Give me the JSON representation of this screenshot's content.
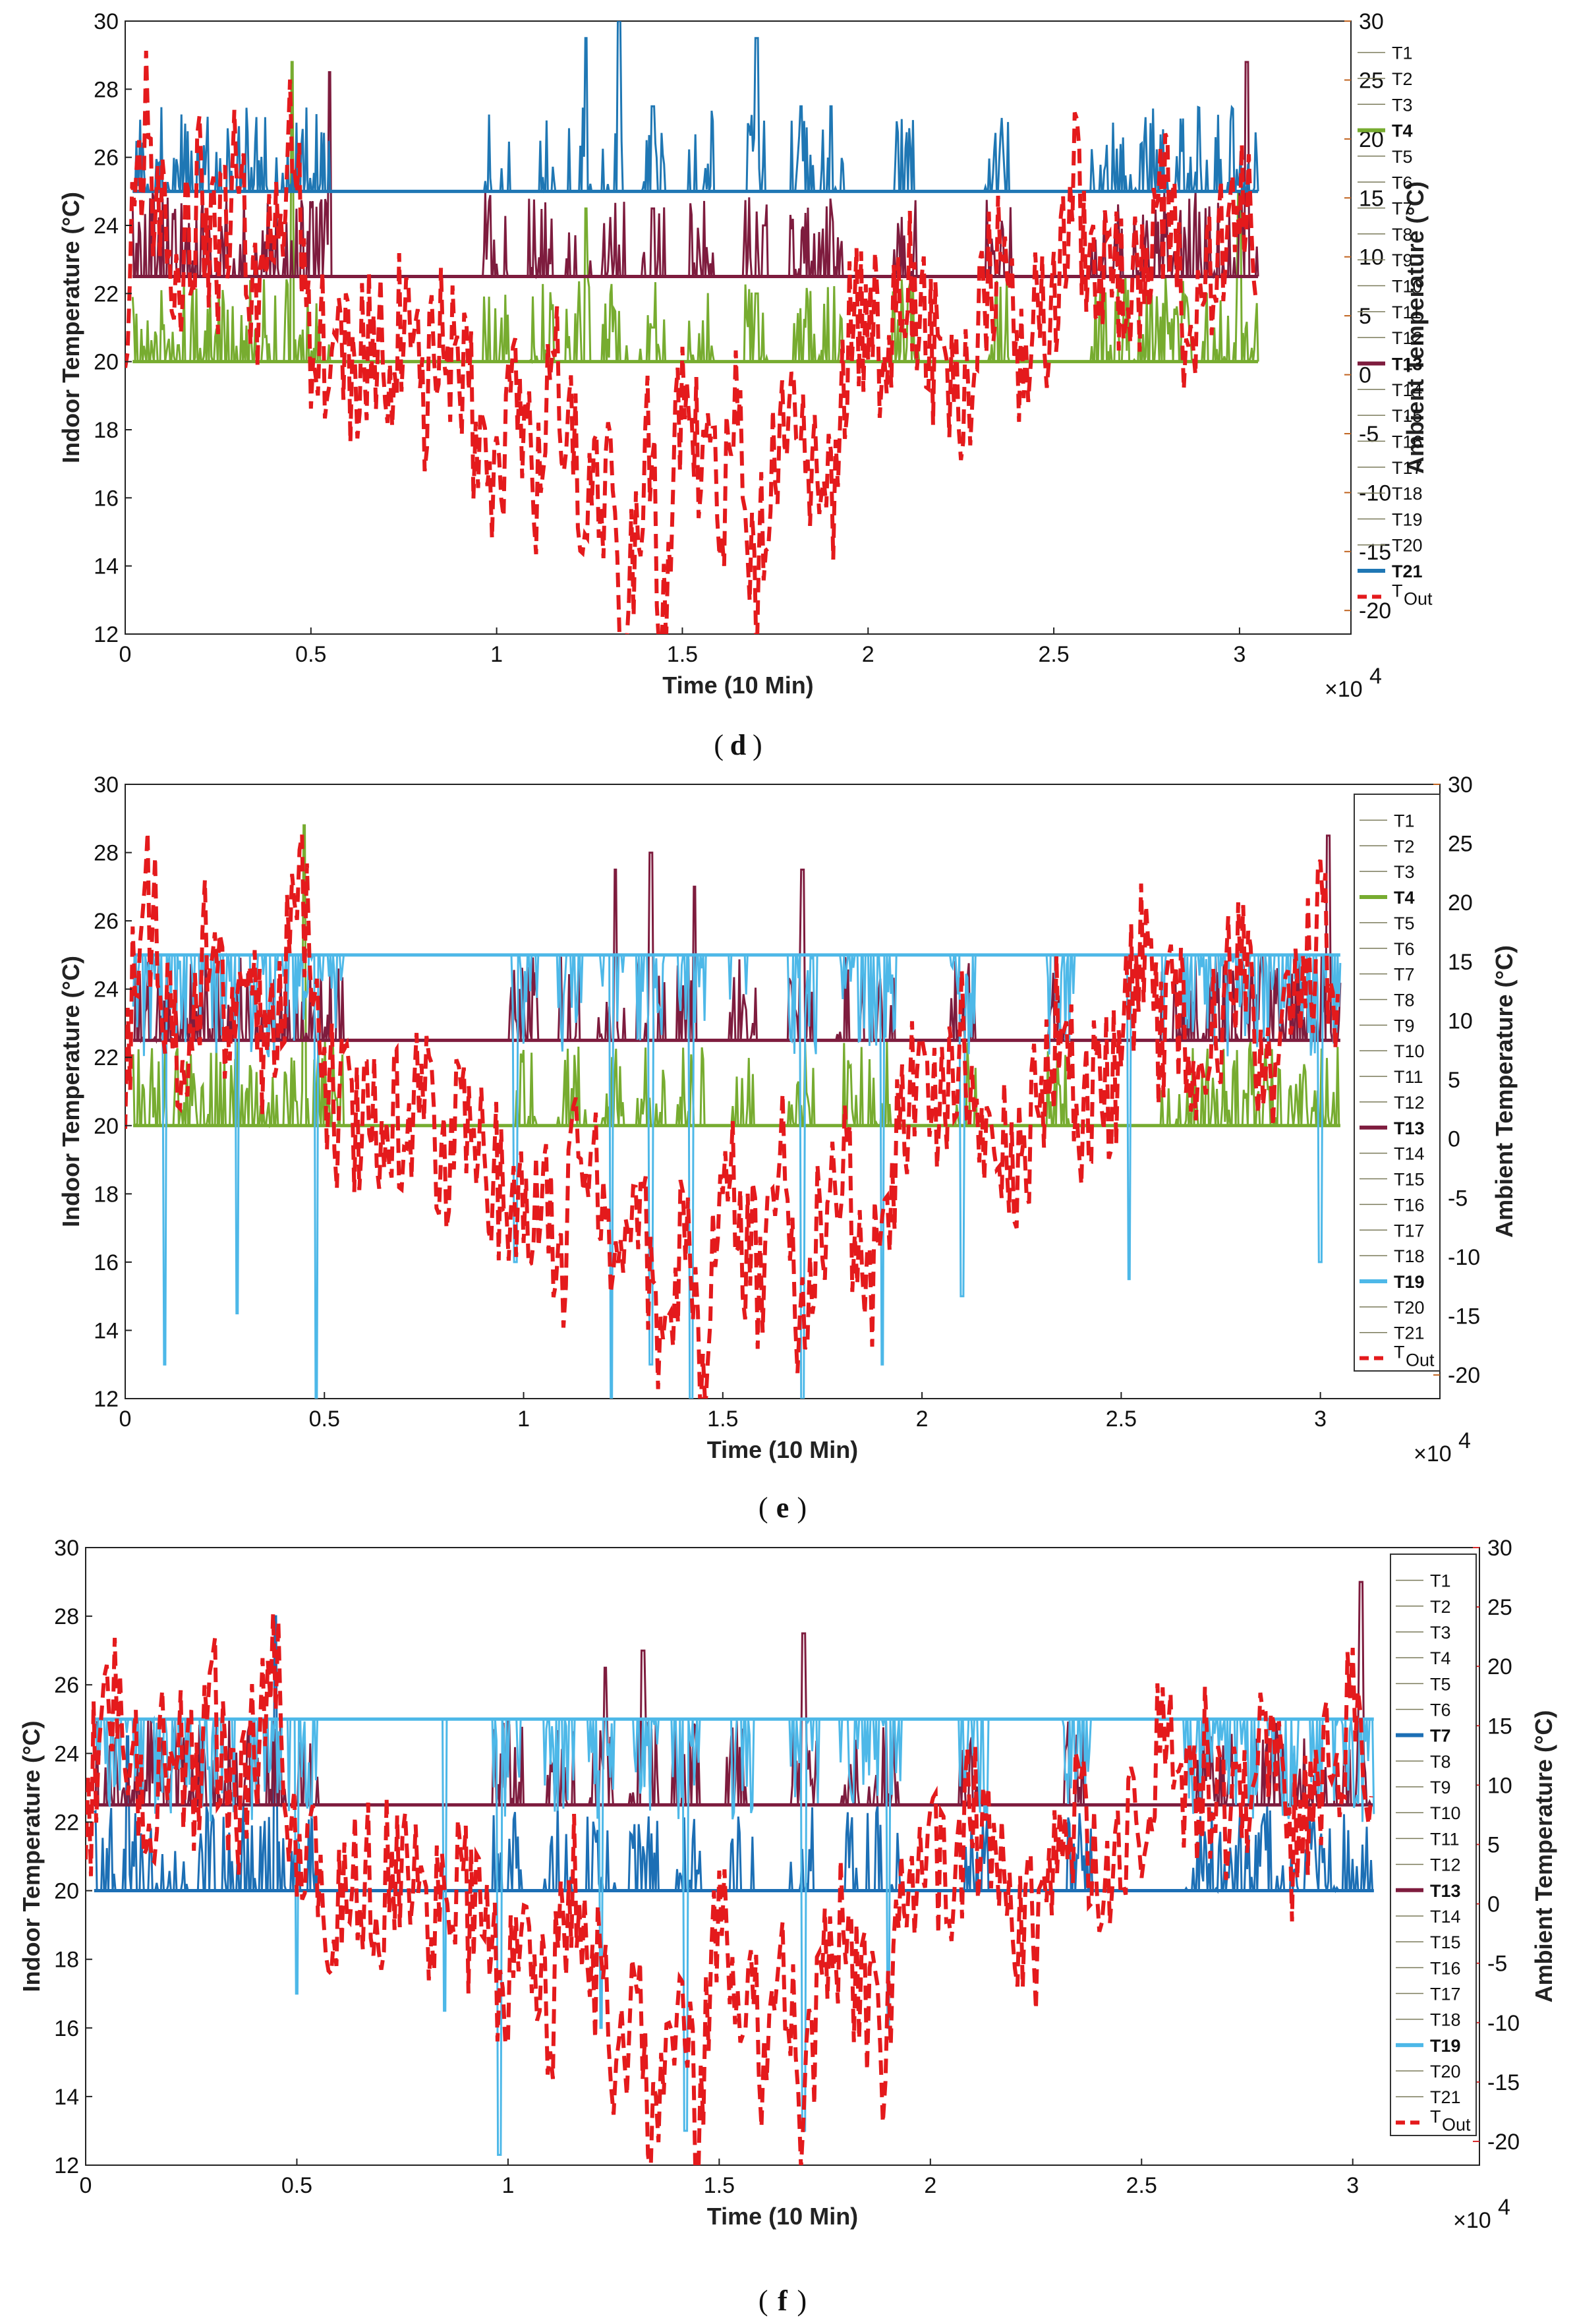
{
  "chart_data": [
    {
      "type": "line",
      "caption_open": "(",
      "caption_letter": "d",
      "caption_close": ")",
      "xlabel": "Time (10 Min)",
      "ylabel_left": "Indoor Temperature (°C)",
      "ylabel_right": "Ambient Temperature (°C)",
      "x_exponent_label": "×10",
      "x_exponent": "4",
      "xlim": [
        0,
        3.3
      ],
      "ylim_left": [
        12,
        30
      ],
      "ylim_right": [
        -22,
        30
      ],
      "xticks": [
        "0",
        "0.5",
        "1",
        "1.5",
        "2",
        "2.5",
        "3"
      ],
      "yticks_left": [
        "12",
        "14",
        "16",
        "18",
        "20",
        "22",
        "24",
        "26",
        "28",
        "30"
      ],
      "yticks_right": [
        "-20",
        "-15",
        "-10",
        "-5",
        "0",
        "5",
        "10",
        "15",
        "20",
        "25",
        "30"
      ],
      "right_axis_color": "#c0631f",
      "legend": [
        "T1",
        "T2",
        "T3",
        "T4",
        "T5",
        "T6",
        "T7",
        "T8",
        "T9",
        "T10",
        "T11",
        "T12",
        "T13",
        "T14",
        "T15",
        "T16",
        "T17",
        "T18",
        "T19",
        "T20",
        "T21"
      ],
      "legend_out_main": "T",
      "legend_out_sub": "Out",
      "highlighted_series": [
        {
          "name": "T4",
          "color": "#77ac30",
          "setpoint": 20,
          "peaks": [
            [
              0.45,
              28.8
            ],
            [
              1.24,
              24.5
            ],
            [
              1.42,
              21.0
            ],
            [
              1.7,
              22.0
            ],
            [
              3.0,
              25.0
            ]
          ]
        },
        {
          "name": "T13",
          "color": "#7e1c3e",
          "setpoint": 22.5,
          "peaks": [
            [
              0.55,
              28.5
            ],
            [
              1.42,
              24.5
            ],
            [
              1.72,
              24.0
            ],
            [
              3.02,
              28.8
            ]
          ]
        },
        {
          "name": "T21",
          "color": "#1f77b4",
          "setpoint": 25,
          "peaks": [
            [
              1.24,
              29.5
            ],
            [
              1.33,
              30.0
            ],
            [
              1.42,
              27.5
            ],
            [
              1.7,
              29.5
            ],
            [
              1.82,
              27.5
            ],
            [
              1.9,
              27.5
            ]
          ]
        }
      ],
      "series_out": {
        "name": "T_Out",
        "color": "#e41a1c",
        "x": [
          0.0,
          0.05,
          0.1,
          0.15,
          0.2,
          0.25,
          0.3,
          0.35,
          0.4,
          0.45,
          0.5,
          0.55,
          0.6,
          0.65,
          0.7,
          0.75,
          0.8,
          0.85,
          0.9,
          0.95,
          1.0,
          1.05,
          1.1,
          1.15,
          1.2,
          1.25,
          1.3,
          1.35,
          1.4,
          1.45,
          1.5,
          1.55,
          1.6,
          1.65,
          1.7,
          1.75,
          1.8,
          1.85,
          1.9,
          1.95,
          2.0,
          2.05,
          2.1,
          2.15,
          2.2,
          2.25,
          2.3,
          2.35,
          2.4,
          2.45,
          2.5,
          2.55,
          2.6,
          2.65,
          2.7,
          2.75,
          2.8,
          2.85,
          2.9,
          2.95,
          3.0,
          3.05
        ],
        "y": [
          5,
          22,
          12,
          8,
          15,
          10,
          18,
          6,
          14,
          20,
          4,
          2,
          0,
          3,
          1,
          5,
          -2,
          4,
          0,
          -5,
          -8,
          -3,
          -10,
          2,
          -5,
          -12,
          -8,
          -22,
          -5,
          -20,
          0,
          -8,
          -12,
          -3,
          -18,
          -6,
          -2,
          -10,
          -12,
          3,
          5,
          2,
          8,
          4,
          0,
          -3,
          5,
          10,
          2,
          4,
          6,
          18,
          8,
          12,
          6,
          10,
          15,
          5,
          8,
          12,
          18,
          10
        ]
      }
    },
    {
      "type": "line",
      "caption_open": "(",
      "caption_letter": "e",
      "caption_close": ")",
      "xlabel": "Time (10 Min)",
      "ylabel_left": "Indoor Temperature (°C)",
      "ylabel_right": "Ambient Temperature (°C)",
      "x_exponent_label": "×10",
      "x_exponent": "4",
      "xlim": [
        0,
        3.3
      ],
      "ylim_left": [
        12,
        30
      ],
      "ylim_right": [
        -22,
        30
      ],
      "xticks": [
        "0",
        "0.5",
        "1",
        "1.5",
        "2",
        "2.5",
        "3"
      ],
      "yticks_left": [
        "12",
        "14",
        "16",
        "18",
        "20",
        "22",
        "24",
        "26",
        "28",
        "30"
      ],
      "yticks_right": [
        "-20",
        "-15",
        "-10",
        "-5",
        "0",
        "5",
        "10",
        "15",
        "20",
        "25",
        "30"
      ],
      "right_axis_color": "#c0631f",
      "legend": [
        "T1",
        "T2",
        "T3",
        "T4",
        "T5",
        "T6",
        "T7",
        "T8",
        "T9",
        "T10",
        "T11",
        "T12",
        "T13",
        "T14",
        "T15",
        "T16",
        "T17",
        "T18",
        "T19",
        "T20",
        "T21"
      ],
      "legend_out_main": "T",
      "legend_out_sub": "Out",
      "highlighted_series": [
        {
          "name": "T4",
          "color": "#77ac30",
          "setpoint": 20,
          "peaks": [
            [
              0.45,
              28.8
            ]
          ]
        },
        {
          "name": "T13",
          "color": "#7e1c3e",
          "setpoint": 22.5,
          "peaks": [
            [
              1.23,
              27.5
            ],
            [
              1.32,
              28.0
            ],
            [
              1.43,
              27.0
            ],
            [
              1.7,
              27.5
            ],
            [
              3.02,
              28.5
            ]
          ]
        },
        {
          "name": "T19",
          "color": "#4db8e8",
          "setpoint": 25,
          "dips": [
            [
              0.1,
              13.0
            ],
            [
              0.28,
              14.5
            ],
            [
              0.48,
              12.0
            ],
            [
              0.98,
              16.0
            ],
            [
              1.22,
              12.0
            ],
            [
              1.32,
              13.0
            ],
            [
              1.42,
              12.0
            ],
            [
              1.7,
              12.0
            ],
            [
              1.9,
              13.0
            ],
            [
              2.1,
              15.0
            ],
            [
              2.52,
              15.5
            ],
            [
              3.0,
              16.0
            ]
          ]
        }
      ],
      "series_out": {
        "name": "T_Out",
        "color": "#e41a1c",
        "x": [
          0.0,
          0.05,
          0.1,
          0.15,
          0.2,
          0.25,
          0.3,
          0.35,
          0.4,
          0.45,
          0.5,
          0.55,
          0.6,
          0.65,
          0.7,
          0.75,
          0.8,
          0.85,
          0.9,
          0.95,
          1.0,
          1.05,
          1.1,
          1.15,
          1.2,
          1.25,
          1.3,
          1.35,
          1.4,
          1.45,
          1.5,
          1.55,
          1.6,
          1.65,
          1.7,
          1.75,
          1.8,
          1.85,
          1.9,
          1.95,
          2.0,
          2.05,
          2.1,
          2.15,
          2.2,
          2.25,
          2.3,
          2.35,
          2.4,
          2.45,
          2.5,
          2.55,
          2.6,
          2.65,
          2.7,
          2.75,
          2.8,
          2.85,
          2.9,
          2.95,
          3.0,
          3.05
        ],
        "y": [
          5,
          22,
          12,
          8,
          15,
          10,
          18,
          6,
          14,
          20,
          4,
          2,
          0,
          3,
          1,
          5,
          -2,
          4,
          0,
          -5,
          -8,
          -3,
          -10,
          2,
          -5,
          -12,
          -8,
          -22,
          -5,
          -20,
          0,
          -8,
          -12,
          -3,
          -18,
          -6,
          -2,
          -10,
          -12,
          3,
          5,
          2,
          8,
          4,
          0,
          -3,
          5,
          10,
          2,
          4,
          6,
          18,
          8,
          12,
          6,
          10,
          15,
          5,
          8,
          12,
          18,
          10
        ]
      }
    },
    {
      "type": "line",
      "caption_open": "(",
      "caption_letter": "f",
      "caption_close": ")",
      "xlabel": "Time (10 Min)",
      "ylabel_left": "Indoor Temperature (°C)",
      "ylabel_right": "Ambient Temperature (°C)",
      "x_exponent_label": "×10",
      "x_exponent": "4",
      "xlim": [
        0,
        3.3
      ],
      "ylim_left": [
        12,
        30
      ],
      "ylim_right": [
        -22,
        30
      ],
      "xticks": [
        "0",
        "0.5",
        "1",
        "1.5",
        "2",
        "2.5",
        "3"
      ],
      "yticks_left": [
        "12",
        "14",
        "16",
        "18",
        "20",
        "22",
        "24",
        "26",
        "28",
        "30"
      ],
      "yticks_right": [
        "-20",
        "-15",
        "-10",
        "-5",
        "0",
        "5",
        "10",
        "15",
        "20",
        "25",
        "30"
      ],
      "right_axis_color": "#d62728",
      "legend": [
        "T1",
        "T2",
        "T3",
        "T4",
        "T5",
        "T6",
        "T7",
        "T8",
        "T9",
        "T10",
        "T11",
        "T12",
        "T13",
        "T14",
        "T15",
        "T16",
        "T17",
        "T18",
        "T19",
        "T20",
        "T21"
      ],
      "legend_out_main": "T",
      "legend_out_sub": "Out",
      "highlighted_series": [
        {
          "name": "T7",
          "color": "#1c6fb5",
          "setpoint": 20,
          "peaks": [
            [
              0.1,
              24.5
            ],
            [
              0.45,
              28.0
            ]
          ]
        },
        {
          "name": "T13",
          "color": "#7e1c3e",
          "setpoint": 22.5,
          "peaks": [
            [
              1.23,
              26.5
            ],
            [
              1.32,
              27.0
            ],
            [
              1.7,
              27.5
            ],
            [
              3.02,
              29.0
            ]
          ]
        },
        {
          "name": "T19",
          "color": "#4db8e8",
          "setpoint": 25,
          "dips": [
            [
              0.5,
              17.0
            ],
            [
              0.85,
              16.5
            ],
            [
              0.98,
              12.3
            ],
            [
              1.22,
              16.0
            ],
            [
              1.42,
              13.0
            ],
            [
              1.7,
              13.0
            ],
            [
              1.9,
              16.0
            ]
          ]
        }
      ],
      "series_out": {
        "name": "T_Out",
        "color": "#e41a1c",
        "x": [
          0.0,
          0.05,
          0.1,
          0.15,
          0.2,
          0.25,
          0.3,
          0.35,
          0.4,
          0.45,
          0.5,
          0.55,
          0.6,
          0.65,
          0.7,
          0.75,
          0.8,
          0.85,
          0.9,
          0.95,
          1.0,
          1.05,
          1.1,
          1.15,
          1.2,
          1.25,
          1.3,
          1.35,
          1.4,
          1.45,
          1.5,
          1.55,
          1.6,
          1.65,
          1.7,
          1.75,
          1.8,
          1.85,
          1.9,
          1.95,
          2.0,
          2.05,
          2.1,
          2.15,
          2.2,
          2.25,
          2.3,
          2.35,
          2.4,
          2.45,
          2.5,
          2.55,
          2.6,
          2.65,
          2.7,
          2.75,
          2.8,
          2.85,
          2.9,
          2.95,
          3.0,
          3.05
        ],
        "y": [
          5,
          22,
          12,
          8,
          15,
          10,
          18,
          6,
          14,
          20,
          4,
          2,
          0,
          3,
          1,
          5,
          -2,
          4,
          0,
          -5,
          -8,
          -3,
          -10,
          2,
          -5,
          -12,
          -8,
          -22,
          -5,
          -20,
          0,
          -8,
          -12,
          -3,
          -18,
          -6,
          -2,
          -10,
          -12,
          3,
          5,
          2,
          8,
          4,
          0,
          -3,
          5,
          10,
          2,
          4,
          6,
          18,
          8,
          12,
          6,
          10,
          15,
          5,
          8,
          12,
          18,
          10
        ]
      }
    }
  ]
}
